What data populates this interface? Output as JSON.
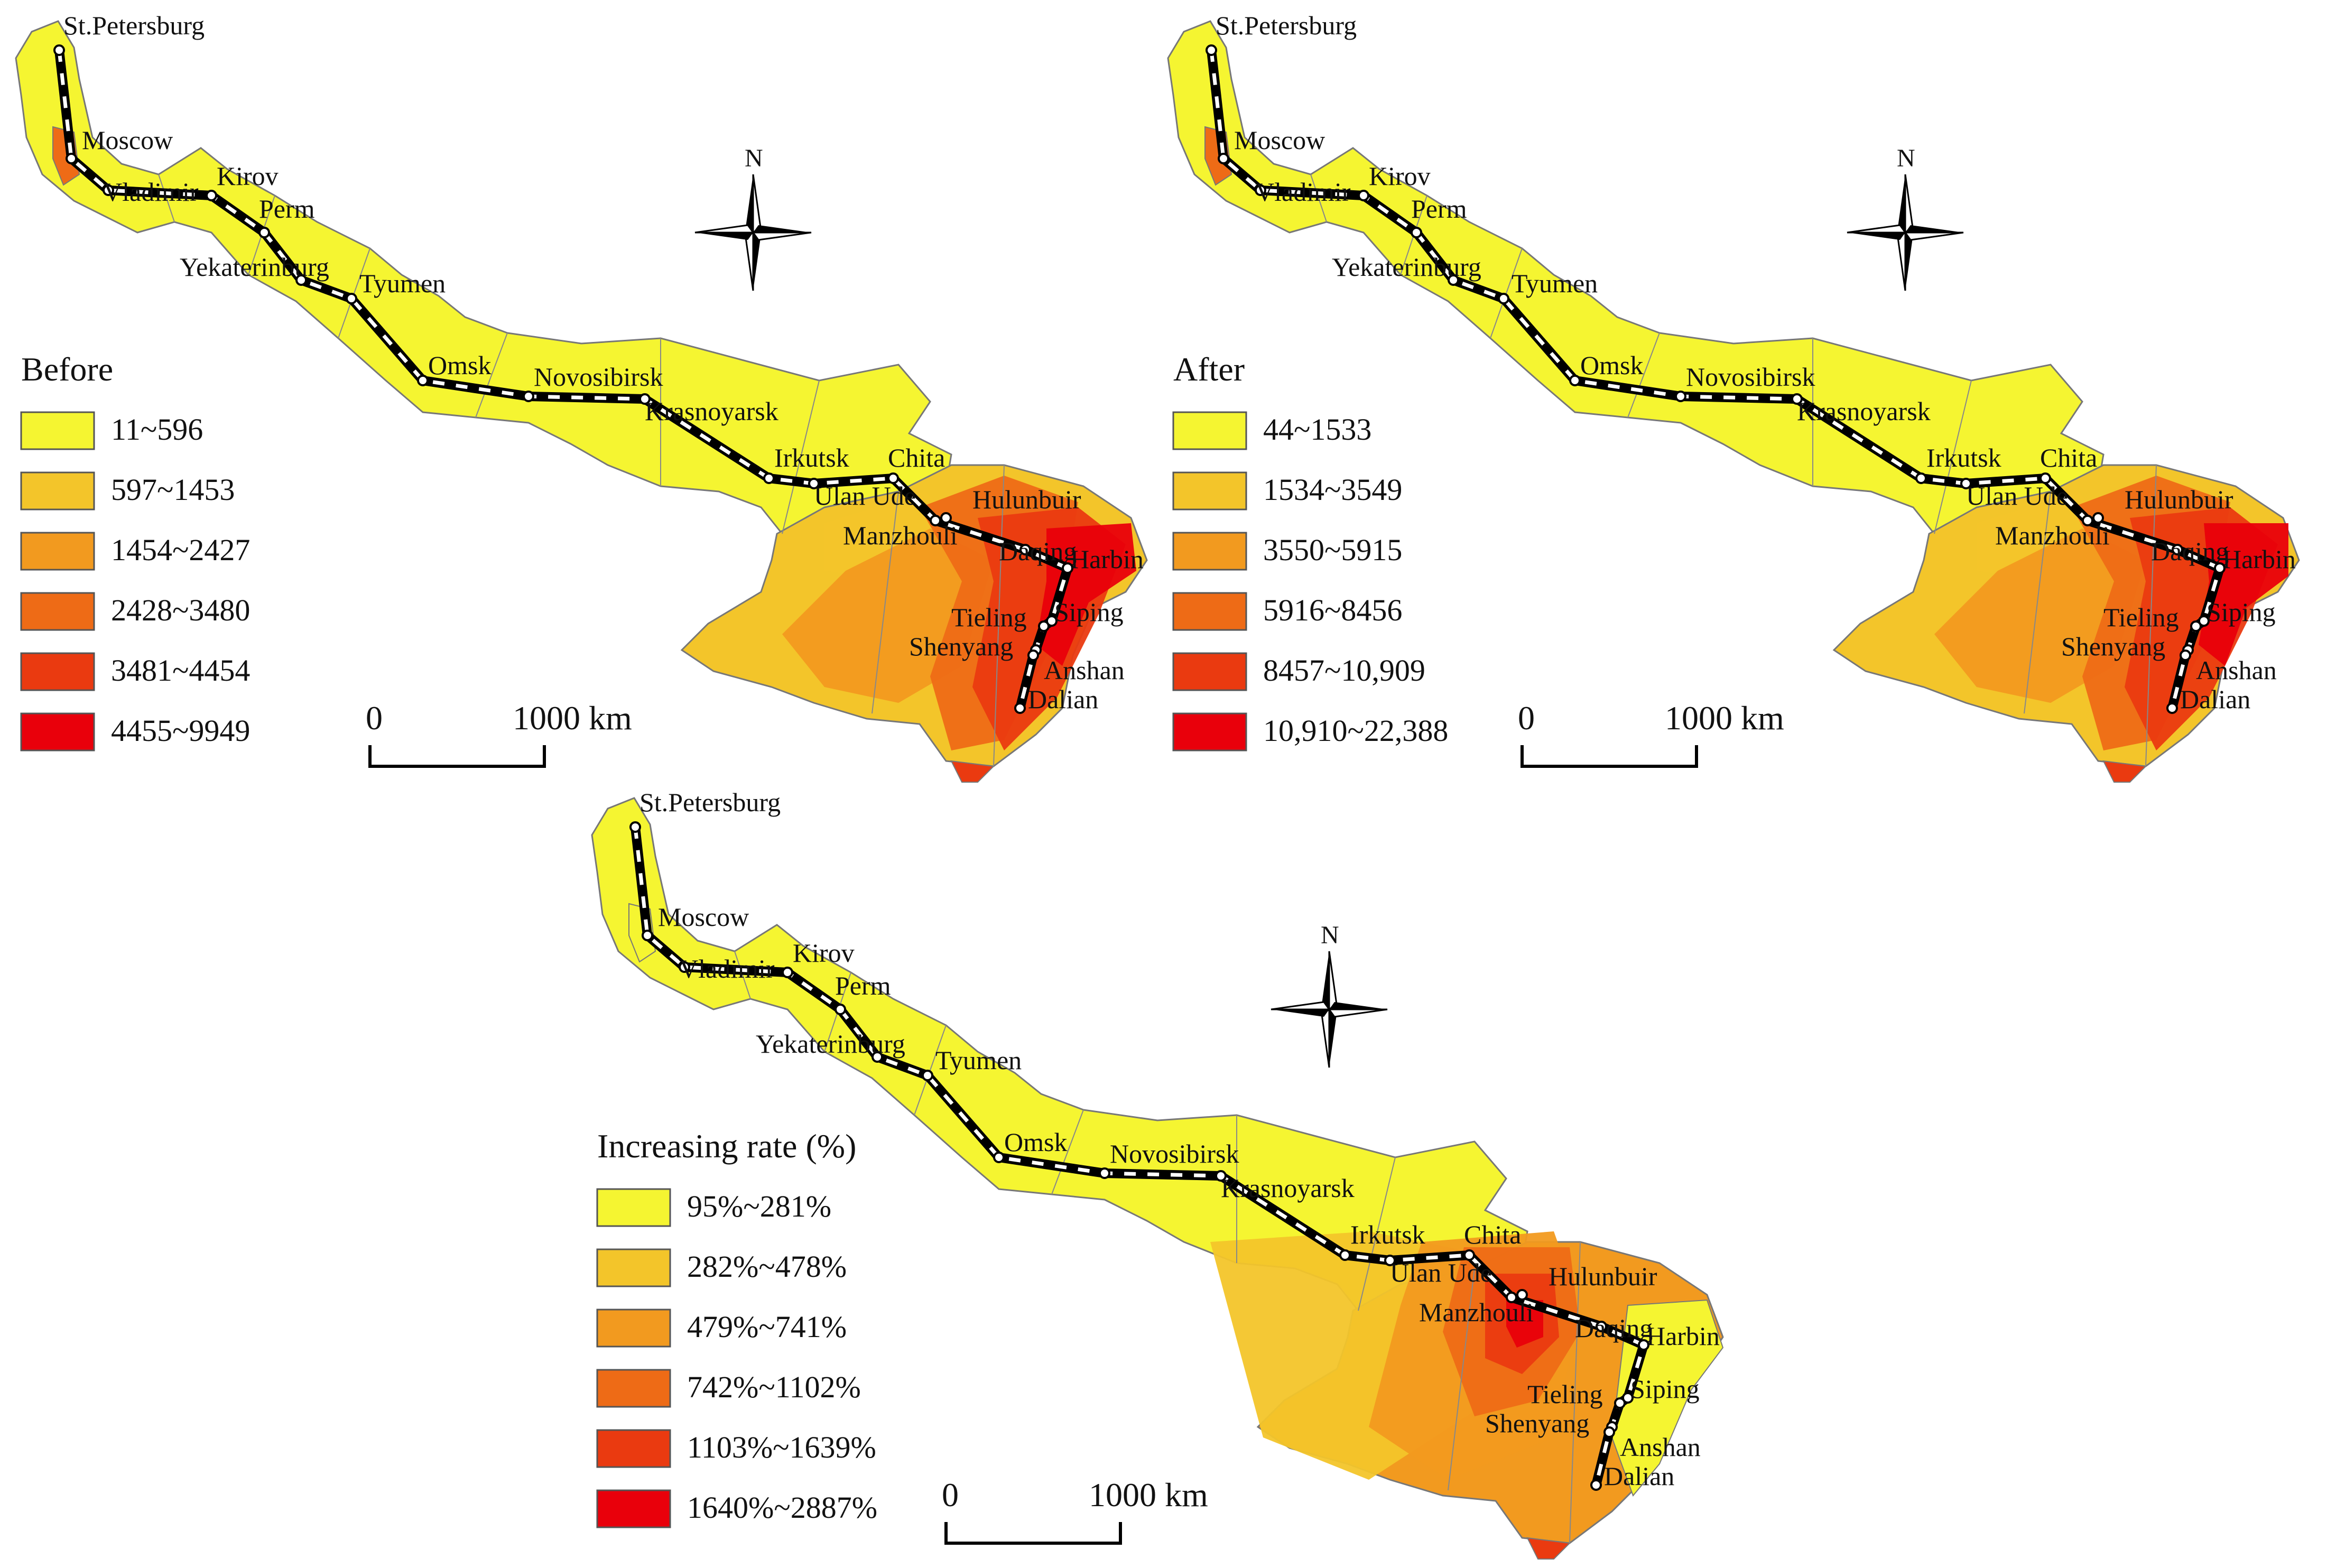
{
  "maps": [
    {
      "id": "before",
      "legend_title": "Before",
      "classes": [
        {
          "label": "11~596",
          "color": "#f5f531"
        },
        {
          "label": "597~1453",
          "color": "#f3c52a"
        },
        {
          "label": "1454~2427",
          "color": "#f29a1f"
        },
        {
          "label": "2428~3480",
          "color": "#ee6b16"
        },
        {
          "label": "3481~4454",
          "color": "#ea3a10"
        },
        {
          "label": "4455~9949",
          "color": "#e9000b"
        }
      ],
      "scale": {
        "start": "0",
        "end": "1000 km"
      },
      "north_label": "N"
    },
    {
      "id": "after",
      "legend_title": "After",
      "classes": [
        {
          "label": "44~1533",
          "color": "#f5f531"
        },
        {
          "label": "1534~3549",
          "color": "#f3c52a"
        },
        {
          "label": "3550~5915",
          "color": "#f29a1f"
        },
        {
          "label": "5916~8456",
          "color": "#ee6b16"
        },
        {
          "label": "8457~10,909",
          "color": "#ea3a10"
        },
        {
          "label": "10,910~22,388",
          "color": "#e9000b"
        }
      ],
      "scale": {
        "start": "0",
        "end": "1000 km"
      },
      "north_label": "N"
    },
    {
      "id": "rate",
      "legend_title": "Increasing rate (%)",
      "classes": [
        {
          "label": "95%~281%",
          "color": "#f5f531"
        },
        {
          "label": "282%~478%",
          "color": "#f3c52a"
        },
        {
          "label": "479%~741%",
          "color": "#f29a1f"
        },
        {
          "label": "742%~1102%",
          "color": "#ee6b16"
        },
        {
          "label": "1103%~1639%",
          "color": "#ea3a10"
        },
        {
          "label": "1640%~2887%",
          "color": "#e9000b"
        }
      ],
      "scale": {
        "start": "0",
        "end": "1000 km"
      },
      "north_label": "N"
    }
  ],
  "cities": [
    "St.Petersburg",
    "Moscow",
    "Vladimir",
    "Kirov",
    "Perm",
    "Yekaterinburg",
    "Tyumen",
    "Omsk",
    "Novosibirsk",
    "Krasnoyarsk",
    "Irkutsk",
    "Ulan Ude",
    "Chita",
    "Hulunbuir",
    "Manzhouli",
    "Daqing",
    "Harbin",
    "Siping",
    "Tieling",
    "Anshan",
    "Shenyang",
    "Dalian"
  ]
}
